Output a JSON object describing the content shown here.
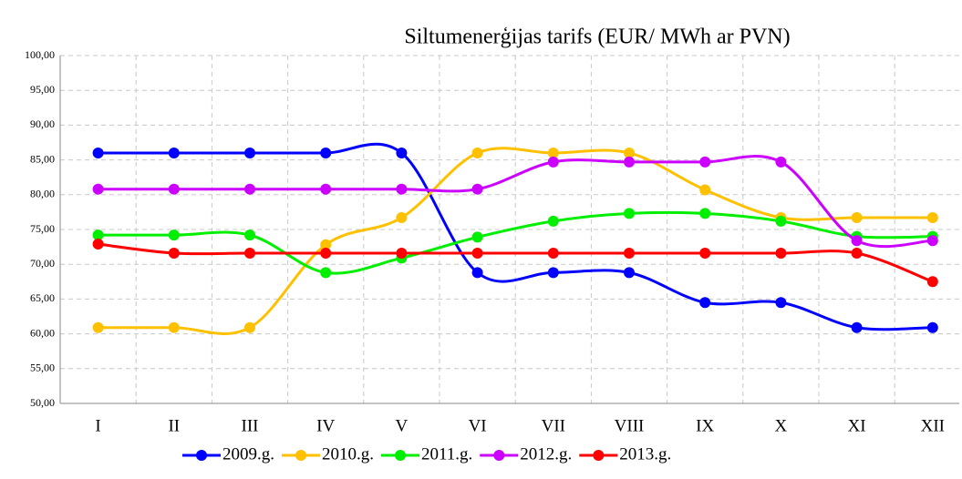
{
  "chart_data": {
    "type": "line",
    "title": "Siltumenerģijas tarifs (EUR/ MWh ar PVN)",
    "categories": [
      "I",
      "II",
      "III",
      "IV",
      "V",
      "VI",
      "VII",
      "VIII",
      "IX",
      "X",
      "XI",
      "XII"
    ],
    "series": [
      {
        "name": "2009.g.",
        "color": "#0000ff",
        "values": [
          86.0,
          86.0,
          86.0,
          86.0,
          86.0,
          68.8,
          68.8,
          68.8,
          64.5,
          64.5,
          60.9,
          60.9
        ]
      },
      {
        "name": "2010.g.",
        "color": "#ffc000",
        "values": [
          60.9,
          60.9,
          60.9,
          72.8,
          76.7,
          86.0,
          86.0,
          86.0,
          80.7,
          76.7,
          76.7,
          76.7
        ]
      },
      {
        "name": "2011.g.",
        "color": "#00ee00",
        "values": [
          74.2,
          74.2,
          74.2,
          68.8,
          70.9,
          73.9,
          76.2,
          77.3,
          77.3,
          76.2,
          74.0,
          74.0
        ]
      },
      {
        "name": "2012.g.",
        "color": "#cc00ff",
        "values": [
          80.8,
          80.8,
          80.8,
          80.8,
          80.8,
          80.8,
          84.7,
          84.7,
          84.7,
          84.7,
          73.4,
          73.4
        ]
      },
      {
        "name": "2013.g.",
        "color": "#ff0000",
        "values": [
          72.9,
          71.6,
          71.6,
          71.6,
          71.6,
          71.6,
          71.6,
          71.6,
          71.6,
          71.6,
          71.6,
          67.5
        ]
      }
    ],
    "ylim": [
      50,
      100
    ],
    "yticks": [
      {
        "value": 50,
        "label": "50,00"
      },
      {
        "value": 55,
        "label": "55,00"
      },
      {
        "value": 60,
        "label": "60,00"
      },
      {
        "value": 65,
        "label": "65,00"
      },
      {
        "value": 70,
        "label": "70,00"
      },
      {
        "value": 75,
        "label": "75,00"
      },
      {
        "value": 80,
        "label": "80,00"
      },
      {
        "value": 85,
        "label": "85,00"
      },
      {
        "value": 90,
        "label": "90,00"
      },
      {
        "value": 95,
        "label": "95,00"
      },
      {
        "value": 100,
        "label": "100,00"
      }
    ],
    "grid": true,
    "legend": "bottom"
  }
}
